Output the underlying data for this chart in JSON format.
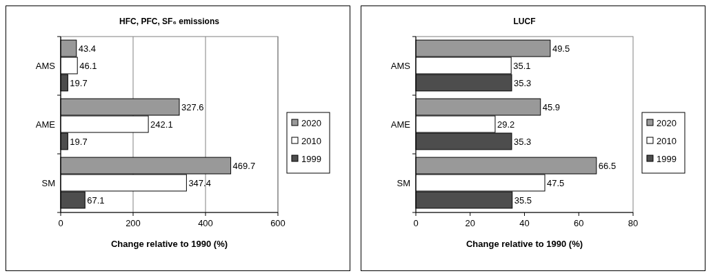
{
  "chart_data": [
    {
      "type": "bar",
      "orientation": "horizontal",
      "title": "HFC, PFC, SF₆ emissions",
      "xlabel": "Change relative to 1990 (%)",
      "categories": [
        "AMS",
        "AME",
        "SM"
      ],
      "xlim": [
        0,
        600
      ],
      "xticks": [
        0,
        200,
        400,
        600
      ],
      "grid": "x",
      "legend": "right",
      "data_labels": true,
      "series": [
        {
          "name": "2020",
          "color": "#999999",
          "values": [
            43.4,
            327.6,
            469.7
          ]
        },
        {
          "name": "2010",
          "color": "#ffffff",
          "values": [
            46.1,
            242.1,
            347.4
          ]
        },
        {
          "name": "1999",
          "color": "#4d4d4d",
          "values": [
            19.7,
            19.7,
            67.1
          ]
        }
      ]
    },
    {
      "type": "bar",
      "orientation": "horizontal",
      "title": "LUCF",
      "xlabel": "Change relative to 1990 (%)",
      "categories": [
        "AMS",
        "AME",
        "SM"
      ],
      "xlim": [
        0,
        80
      ],
      "xticks": [
        0,
        20,
        40,
        60,
        80
      ],
      "grid": false,
      "legend": "right",
      "data_labels": true,
      "series": [
        {
          "name": "2020",
          "color": "#999999",
          "values": [
            49.5,
            45.9,
            66.5
          ]
        },
        {
          "name": "2010",
          "color": "#ffffff",
          "values": [
            35.1,
            29.2,
            47.5
          ]
        },
        {
          "name": "1999",
          "color": "#4d4d4d",
          "values": [
            35.3,
            35.3,
            35.5
          ]
        }
      ]
    }
  ]
}
